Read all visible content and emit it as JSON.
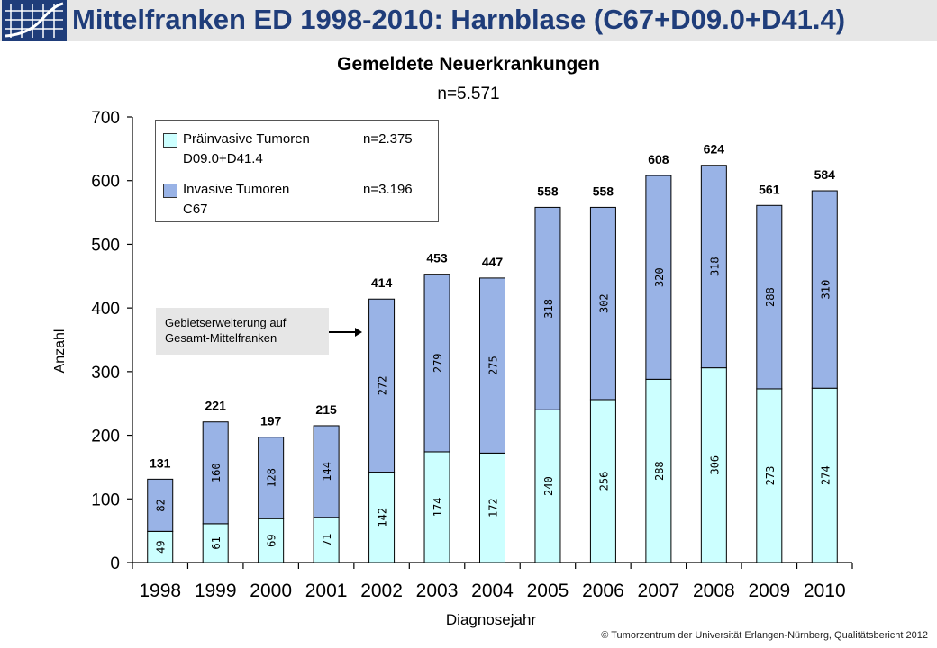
{
  "header": {
    "title": "Mittelfranken ED 1998-2010: Harnblase   (C67+D09.0+D41.4)"
  },
  "chart_data": {
    "type": "bar",
    "stacked": true,
    "title": "Gemeldete Neuerkrankungen",
    "subtitle": "n=5.571",
    "xlabel": "Diagnosejahr",
    "ylabel": "Anzahl",
    "ylim": [
      0,
      700
    ],
    "yticks": [
      "0",
      "100",
      "200",
      "300",
      "400",
      "500",
      "600",
      "700"
    ],
    "categories": [
      "1998",
      "1999",
      "2000",
      "2001",
      "2002",
      "2003",
      "2004",
      "2005",
      "2006",
      "2007",
      "2008",
      "2009",
      "2010"
    ],
    "totals": [
      131,
      221,
      197,
      215,
      414,
      453,
      447,
      558,
      558,
      608,
      624,
      561,
      584
    ],
    "series": [
      {
        "name": "Präinvasive Tumoren",
        "color": "#ccffff",
        "values": [
          49,
          61,
          69,
          71,
          142,
          174,
          172,
          240,
          256,
          288,
          306,
          273,
          274
        ]
      },
      {
        "name": "Invasive Tumoren",
        "color": "#99b3e6",
        "values": [
          82,
          160,
          128,
          144,
          272,
          279,
          275,
          318,
          302,
          320,
          318,
          288,
          310
        ]
      }
    ],
    "grid": false,
    "legend_position": "top-left",
    "legend": [
      {
        "line1": "Präinvasive Tumoren",
        "line2": "D09.0+D41.4",
        "n": "n=2.375"
      },
      {
        "line1": "Invasive Tumoren",
        "line2": "C67",
        "n": "n=3.196"
      }
    ],
    "annotation": {
      "line1": "Gebietserweiterung auf",
      "line2": "Gesamt-Mittelfranken",
      "points_to": "2002"
    }
  },
  "footer": {
    "text": "© Tumorzentrum  der Universität Erlangen-Nürnberg,  Qualitätsbericht 2012"
  }
}
